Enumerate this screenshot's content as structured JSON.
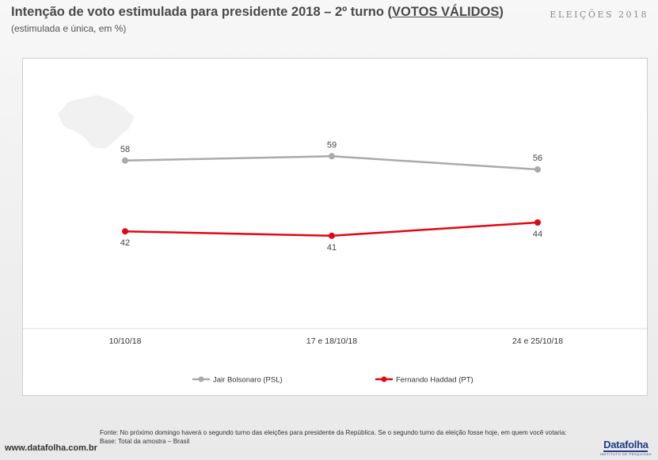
{
  "header": {
    "title": "Intenção de voto estimulada para presidente 2018 – 2º turno (",
    "title_link": "VOTOS VÁLIDOS",
    "title_end": ")",
    "subtitle": "(estimulada e única, em %)",
    "brand": "ELEIÇÕES 2018"
  },
  "chart_data": {
    "type": "line",
    "categories": [
      "10/10/18",
      "17 e 18/10/18",
      "24 e 25/10/18"
    ],
    "series": [
      {
        "name": "Jair Bolsonaro (PSL)",
        "values": [
          58,
          59,
          56
        ],
        "color": "#aaaaaa",
        "label_position": "above"
      },
      {
        "name": "Fernando Haddad (PT)",
        "values": [
          42,
          41,
          44
        ],
        "color": "#e30613",
        "label_position": "below"
      }
    ],
    "ylim": [
      20,
      80
    ],
    "grid": false,
    "legend": "bottom"
  },
  "footer": {
    "source_line1": "Fonte:  No próximo domingo haverá o segundo turno das eleições para presidente da República. Se o segundo turno da eleição fosse hoje, em quem você votaria:",
    "source_line2": "Base: Total da amostra – Brasil",
    "url": "www.datafolha.com.br",
    "logo": "Datafolha",
    "logo_sub": "INSTITUTO DE PESQUISAS"
  }
}
